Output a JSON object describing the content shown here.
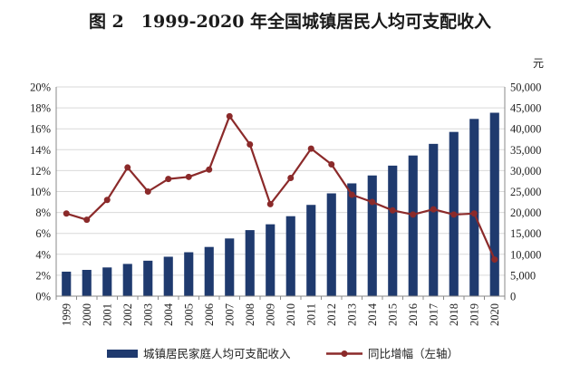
{
  "chart_data": {
    "type": "bar",
    "title": "图 2　1999-2020 年全国城镇居民人均可支配收入",
    "y2_unit": "元",
    "categories": [
      "1999",
      "2000",
      "2001",
      "2002",
      "2003",
      "2004",
      "2005",
      "2006",
      "2007",
      "2008",
      "2009",
      "2010",
      "2011",
      "2012",
      "2013",
      "2014",
      "2015",
      "2016",
      "2017",
      "2018",
      "2019",
      "2020"
    ],
    "series": [
      {
        "name": "城镇居民家庭人均可支配收入",
        "type": "bar",
        "axis": "right",
        "color": "#1f3a6e",
        "values": [
          5854,
          6280,
          6860,
          7703,
          8472,
          9422,
          10493,
          11759,
          13786,
          15781,
          17175,
          19109,
          21810,
          24565,
          26955,
          28844,
          31195,
          33616,
          36396,
          39251,
          42359,
          43834
        ]
      },
      {
        "name": "同比增幅（左轴）",
        "type": "line",
        "axis": "left",
        "color": "#8b2a2a",
        "values": [
          7.9,
          7.3,
          9.2,
          12.3,
          10.0,
          11.2,
          11.4,
          12.1,
          17.2,
          14.5,
          8.8,
          11.3,
          14.1,
          12.6,
          9.7,
          9.0,
          8.2,
          7.8,
          8.3,
          7.8,
          7.9,
          3.5
        ]
      }
    ],
    "y_left": {
      "min": 0,
      "max": 20,
      "step": 2,
      "ticks": [
        "0%",
        "2%",
        "4%",
        "6%",
        "8%",
        "10%",
        "12%",
        "14%",
        "16%",
        "18%",
        "20%"
      ]
    },
    "y_right": {
      "min": 0,
      "max": 50000,
      "step": 5000,
      "ticks": [
        "0",
        "5,000",
        "10,000",
        "15,000",
        "20,000",
        "25,000",
        "30,000",
        "35,000",
        "40,000",
        "45,000",
        "50,000"
      ]
    },
    "grid": true,
    "legend_position": "bottom"
  }
}
